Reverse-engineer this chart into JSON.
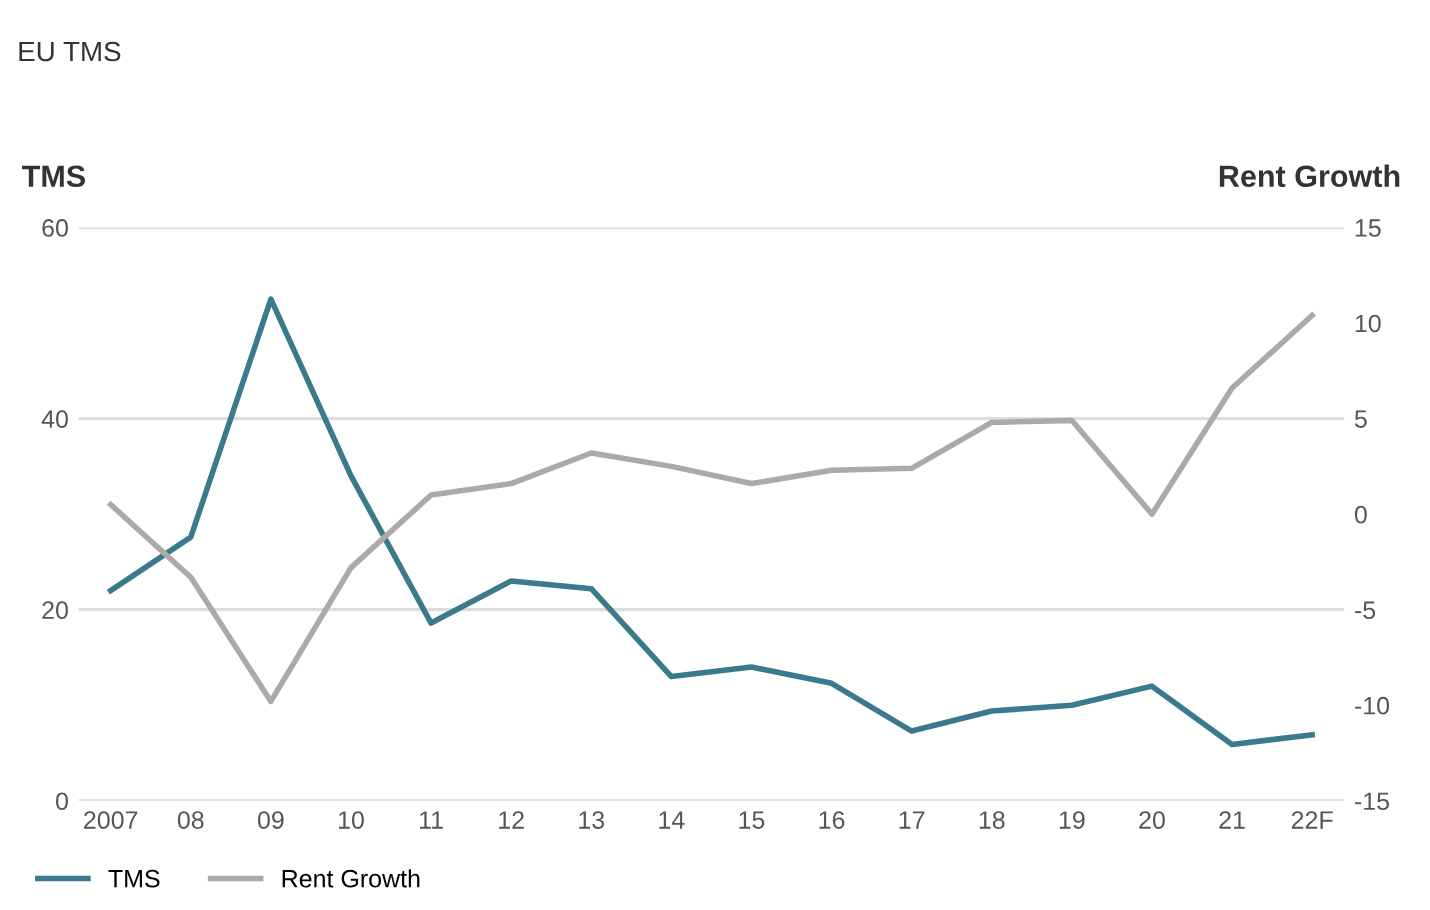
{
  "chart_data": {
    "type": "line",
    "title": "EU TMS",
    "ylabel": "TMS",
    "y2label": "Rent Growth",
    "categories": [
      "2007",
      "08",
      "09",
      "10",
      "11",
      "12",
      "13",
      "14",
      "15",
      "16",
      "17",
      "18",
      "19",
      "20",
      "21",
      "22F"
    ],
    "series": [
      {
        "name": "TMS",
        "color": "#3a7a8c",
        "values": [
          22,
          27.6,
          52.5,
          34,
          18.6,
          23,
          22.2,
          13,
          14,
          12.3,
          7.3,
          9.4,
          10,
          12,
          5.9,
          6.9
        ]
      },
      {
        "name": "Rent Growth",
        "color": "#aaaaaa",
        "axis": "y2",
        "values": [
          0.5,
          -3.3,
          -9.8,
          -2.8,
          1.0,
          1.6,
          3.2,
          2.5,
          1.6,
          2.3,
          2.4,
          4.8,
          4.9,
          0,
          6.6,
          10.4
        ]
      }
    ],
    "ylim": [
      0,
      60
    ],
    "yticks": [
      0,
      20,
      40,
      60
    ],
    "y2lim": [
      -15,
      15
    ],
    "y2ticks": [
      -15,
      -10,
      -5,
      0,
      5,
      10,
      15
    ],
    "grid": "y",
    "legend": "bottom left"
  }
}
